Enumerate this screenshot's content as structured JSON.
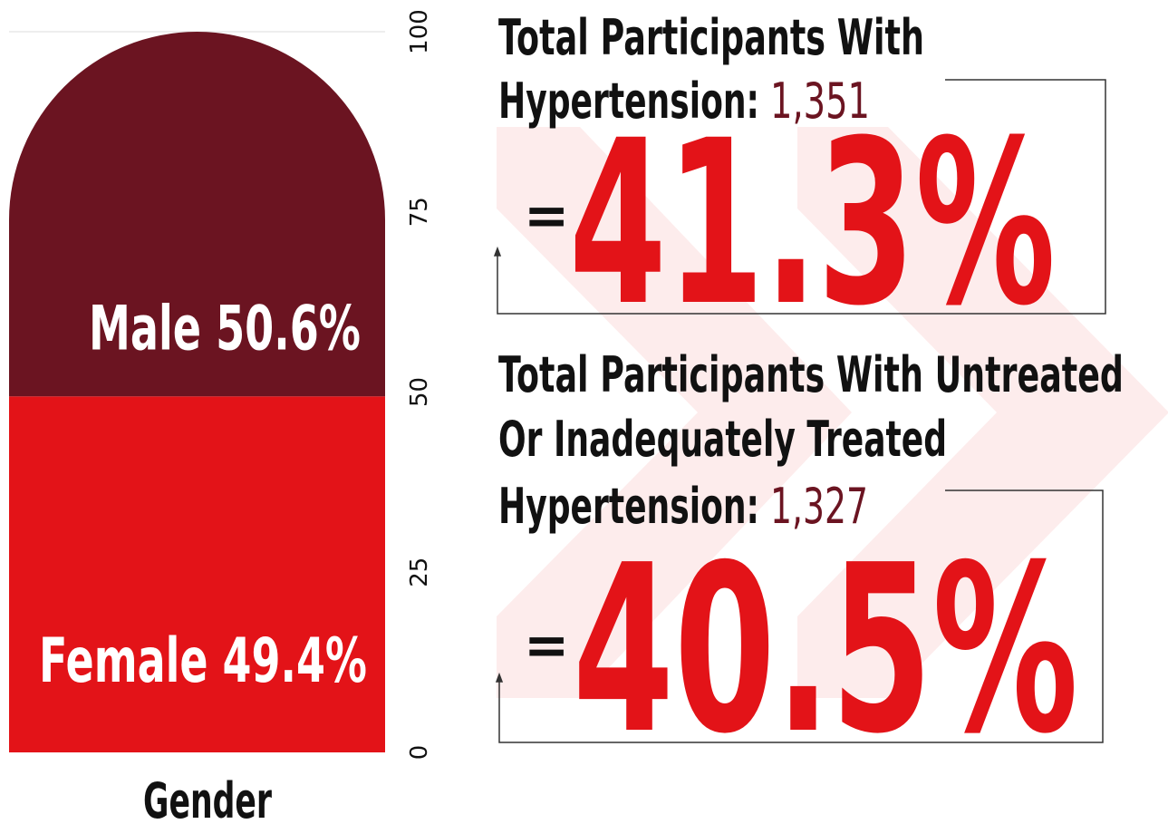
{
  "chart_data": {
    "type": "bar",
    "stacked": true,
    "x_label": "Gender",
    "categories": [
      "Gender"
    ],
    "series": [
      {
        "name": "Female",
        "color": "#e31318",
        "values": [
          49.4
        ],
        "value_labels": [
          "49.4%"
        ]
      },
      {
        "name": "Male",
        "color": "#6b1421",
        "values": [
          50.6
        ],
        "value_labels": [
          "50.6%"
        ]
      }
    ],
    "ylim": [
      0,
      100
    ],
    "yticks": [
      0,
      25,
      50,
      75,
      100
    ],
    "grid": true
  },
  "stats": [
    {
      "lines": [
        "Total Participants With",
        "Hypertension:"
      ],
      "count": "1,351",
      "equals": "=",
      "percent": "41.3%"
    },
    {
      "lines": [
        "Total Participants With Untreated",
        "Or Inadequately Treated",
        "Hypertension:"
      ],
      "count": "1,327",
      "equals": "=",
      "percent": "40.5%"
    }
  ]
}
